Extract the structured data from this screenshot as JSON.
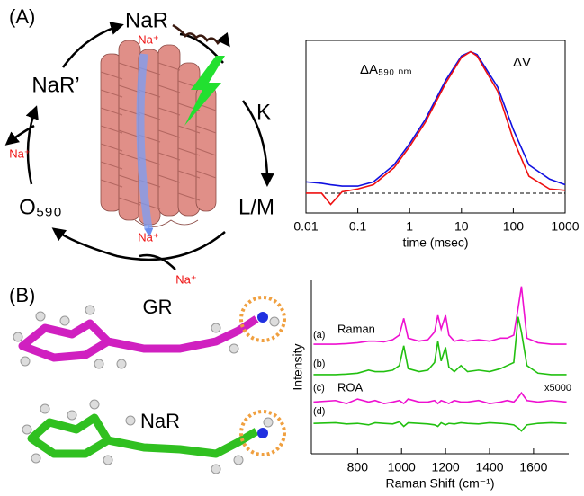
{
  "panels": [
    "(A)",
    "(B)"
  ],
  "photocycle": {
    "nodes": [
      "NaR",
      "K",
      "L/M",
      "O₅₉₀",
      "NaR’"
    ],
    "ions": [
      "Na⁺",
      "Na⁺",
      "Na⁺",
      "Na⁺"
    ]
  },
  "molecules": [
    "GR",
    "NaR"
  ],
  "chart_data": [
    {
      "type": "line",
      "x_label": "time (msec)",
      "log_x": true,
      "x": [
        0.01,
        0.02,
        0.03,
        0.05,
        0.1,
        0.2,
        0.5,
        1,
        2,
        5,
        10,
        15,
        20,
        50,
        100,
        200,
        500,
        1000
      ],
      "series": [
        {
          "name": "ΔA₅₉₀ ₙₘ",
          "color": "#1010e0",
          "values": [
            0.08,
            0.07,
            0.06,
            0.05,
            0.05,
            0.08,
            0.2,
            0.35,
            0.52,
            0.8,
            0.97,
            1.0,
            0.98,
            0.75,
            0.45,
            0.2,
            0.1,
            0.06
          ]
        },
        {
          "name": "ΔV",
          "color": "#ee1010",
          "values": [
            0.0,
            0.0,
            -0.08,
            0.01,
            0.03,
            0.06,
            0.18,
            0.33,
            0.5,
            0.78,
            0.96,
            1.0,
            0.97,
            0.72,
            0.38,
            0.12,
            0.03,
            0.02
          ]
        }
      ],
      "xlim": [
        0.01,
        1000
      ],
      "xticks": [
        0.01,
        0.1,
        1,
        10,
        100,
        1000
      ],
      "ylim": [
        -0.14,
        1.08
      ],
      "reference_line": 0
    },
    {
      "type": "line",
      "x_label": "Raman Shift (cm⁻¹)",
      "y_label": "Intensity",
      "x": [
        600,
        700,
        750,
        800,
        850,
        880,
        920,
        960,
        990,
        1010,
        1030,
        1080,
        1120,
        1150,
        1165,
        1180,
        1200,
        1215,
        1240,
        1270,
        1300,
        1350,
        1400,
        1450,
        1480,
        1510,
        1530,
        1545,
        1570,
        1620,
        1680,
        1750
      ],
      "series": [
        {
          "name": "(a)",
          "color": "#ee10d0",
          "values": [
            3.0,
            3.0,
            3.02,
            3.05,
            3.1,
            3.1,
            3.08,
            3.15,
            3.3,
            3.85,
            3.2,
            3.1,
            3.15,
            3.4,
            3.95,
            3.5,
            3.95,
            3.3,
            3.1,
            3.15,
            3.1,
            3.15,
            3.1,
            3.2,
            3.2,
            3.3,
            4.2,
            4.9,
            3.2,
            3.05,
            3.0,
            3.0
          ]
        },
        {
          "name": "(b)",
          "color": "#22c010",
          "values": [
            2.0,
            2.0,
            2.02,
            2.05,
            2.15,
            2.1,
            2.1,
            2.15,
            2.3,
            2.95,
            2.2,
            2.1,
            2.15,
            2.4,
            3.1,
            2.45,
            2.9,
            2.25,
            2.1,
            2.3,
            2.1,
            2.15,
            2.1,
            2.2,
            2.3,
            2.4,
            3.9,
            3.4,
            2.3,
            2.05,
            2.0,
            2.0
          ]
        },
        {
          "name": "(c)",
          "color": "#ee10d0",
          "values": [
            1.1,
            1.15,
            1.05,
            1.2,
            1.1,
            1.15,
            1.05,
            1.1,
            1.15,
            1.05,
            1.2,
            1.1,
            1.1,
            1.15,
            1.05,
            1.15,
            1.1,
            1.05,
            1.15,
            1.1,
            1.1,
            1.15,
            1.05,
            1.1,
            1.15,
            1.1,
            1.25,
            1.4,
            1.15,
            1.1,
            1.15,
            1.1
          ]
        },
        {
          "name": "(d)",
          "color": "#22c010",
          "values": [
            0.4,
            0.42,
            0.38,
            0.4,
            0.35,
            0.42,
            0.4,
            0.38,
            0.45,
            0.3,
            0.42,
            0.4,
            0.38,
            0.35,
            0.3,
            0.42,
            0.35,
            0.4,
            0.38,
            0.42,
            0.4,
            0.38,
            0.42,
            0.4,
            0.38,
            0.35,
            0.25,
            0.15,
            0.35,
            0.4,
            0.42,
            0.4
          ]
        }
      ],
      "annotations": [
        "Raman",
        "ROA",
        "x5000"
      ],
      "xlim": [
        590,
        1760
      ],
      "xticks": [
        800,
        1000,
        1200,
        1400,
        1600
      ],
      "ylim": [
        -0.6,
        5.1
      ]
    }
  ]
}
